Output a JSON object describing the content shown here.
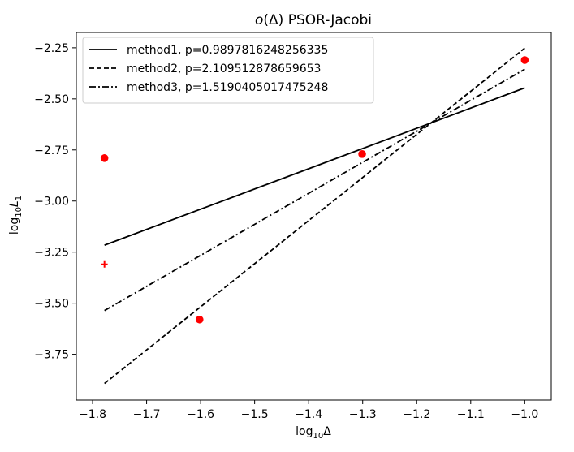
{
  "chart_data": {
    "type": "line",
    "title_prefix": "o",
    "title_rest": "(Δ) PSOR-Jacobi",
    "xlabel": "log10Δ",
    "ylabel": "log10L1",
    "xlim": [
      -1.8301,
      -0.9509
    ],
    "ylim": [
      -3.974,
      -2.175
    ],
    "xticks": [
      -1.8,
      -1.7,
      -1.6,
      -1.5,
      -1.4,
      -1.3,
      -1.2,
      -1.1,
      -1.0
    ],
    "xtick_labels": [
      "−1.8",
      "−1.7",
      "−1.6",
      "−1.5",
      "−1.4",
      "−1.3",
      "−1.2",
      "−1.1",
      "−1.0"
    ],
    "yticks": [
      -2.25,
      -2.5,
      -2.75,
      -3.0,
      -3.25,
      -3.5,
      -3.75
    ],
    "ytick_labels": [
      "−2.25",
      "−2.50",
      "−2.75",
      "−3.00",
      "−3.25",
      "−3.50",
      "−3.75"
    ],
    "legend_position": "top-left",
    "series": [
      {
        "name": "method1, p=0.9897816248256335",
        "style": "solid",
        "x": [
          -1.778,
          -1.0
        ],
        "y": [
          -3.216,
          -2.446
        ]
      },
      {
        "name": "method2, p=2.109512878659653",
        "style": "dashed",
        "x": [
          -1.778,
          -1.0
        ],
        "y": [
          -3.893,
          -2.252
        ]
      },
      {
        "name": "method3, p=1.5190405017475248",
        "style": "dashdot",
        "x": [
          -1.778,
          -1.0
        ],
        "y": [
          -3.536,
          -2.355
        ]
      }
    ],
    "points": [
      {
        "x": -1.778,
        "y": -2.79,
        "marker": "circle"
      },
      {
        "x": -1.602,
        "y": -3.58,
        "marker": "circle"
      },
      {
        "x": -1.301,
        "y": -2.77,
        "marker": "circle"
      },
      {
        "x": -1.0,
        "y": -2.31,
        "marker": "circle"
      },
      {
        "x": -1.778,
        "y": -3.31,
        "marker": "plus"
      }
    ],
    "line_color": "#000000",
    "point_color": "#ff0000"
  }
}
